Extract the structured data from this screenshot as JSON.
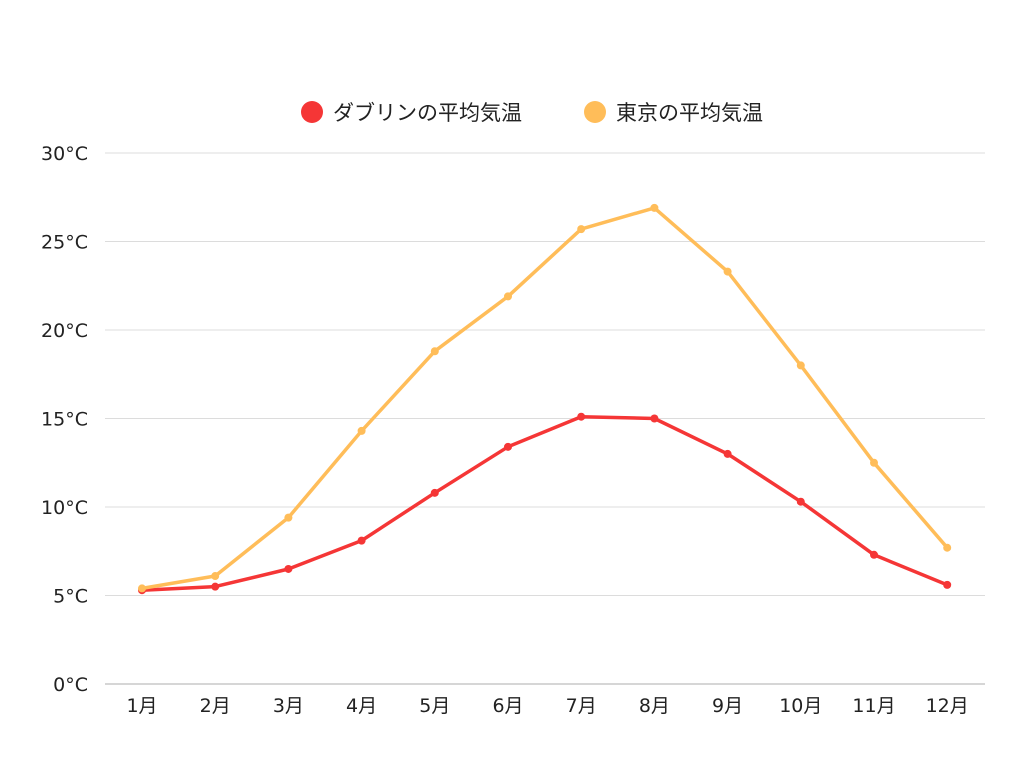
{
  "chart_data": {
    "type": "line",
    "categories": [
      "1月",
      "2月",
      "3月",
      "4月",
      "5月",
      "6月",
      "7月",
      "8月",
      "9月",
      "10月",
      "11月",
      "12月"
    ],
    "series": [
      {
        "name": "ダブリンの平均気温",
        "color": "#f53636",
        "values": [
          5.3,
          5.5,
          6.5,
          8.1,
          10.8,
          13.4,
          15.1,
          15.0,
          13.0,
          10.3,
          7.3,
          5.6
        ]
      },
      {
        "name": "東京の平均気温",
        "color": "#ffbd59",
        "values": [
          5.4,
          6.1,
          9.4,
          14.3,
          18.8,
          21.9,
          25.7,
          26.9,
          23.3,
          18.0,
          12.5,
          7.7
        ]
      }
    ],
    "y_ticks": [
      "0°C",
      "5°C",
      "10°C",
      "15°C",
      "20°C",
      "25°C",
      "30°C"
    ],
    "ylim": [
      0,
      30
    ],
    "y_step": 5,
    "title": "",
    "xlabel": "",
    "ylabel": "",
    "grid": true,
    "legend_position": "top-center"
  }
}
